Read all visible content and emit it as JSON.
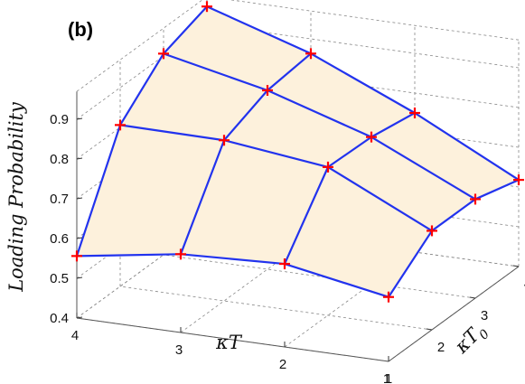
{
  "chart_data": {
    "type": "surface3d",
    "panel_label": "(b)",
    "zlabel": "Loading Probability",
    "xlabel": "κT",
    "ylabel": "κT",
    "ylabel_subscript": "0",
    "x_ticks": [
      "4",
      "3",
      "2",
      "1"
    ],
    "y_ticks": [
      "2",
      "3",
      "4"
    ],
    "z_ticks": [
      "0.4",
      "0.5",
      "0.6",
      "0.7",
      "0.8",
      "0.9"
    ],
    "zlim": [
      0.4,
      0.97
    ],
    "grid": true,
    "marker": "+",
    "colors": {
      "mesh": "#2233ee",
      "fill": "#fdf1dc",
      "marker": "#ff0000",
      "grid": "#888888",
      "axis": "#555555"
    },
    "rows": [
      {
        "kappaT0": 1,
        "points": [
          {
            "kappaT": 4,
            "p": 0.556
          },
          {
            "kappaT": 3,
            "p": 0.597
          },
          {
            "kappaT": 2,
            "p": 0.609
          },
          {
            "kappaT": 1,
            "p": 0.562
          }
        ]
      },
      {
        "kappaT0": 2,
        "points": [
          {
            "kappaT": 4,
            "p": 0.806
          },
          {
            "kappaT": 3,
            "p": 0.804
          },
          {
            "kappaT": 2,
            "p": 0.773
          },
          {
            "kappaT": 1,
            "p": 0.649
          }
        ]
      },
      {
        "kappaT0": 3,
        "points": [
          {
            "kappaT": 4,
            "p": 0.906
          },
          {
            "kappaT": 3,
            "p": 0.85
          },
          {
            "kappaT": 2,
            "p": 0.769
          },
          {
            "kappaT": 1,
            "p": 0.649
          }
        ]
      },
      {
        "kappaT0": 4,
        "points": [
          {
            "kappaT": 4,
            "p": 0.945
          },
          {
            "kappaT": 3,
            "p": 0.863
          },
          {
            "kappaT": 2,
            "p": 0.75
          },
          {
            "kappaT": 1,
            "p": 0.618
          }
        ]
      }
    ]
  }
}
